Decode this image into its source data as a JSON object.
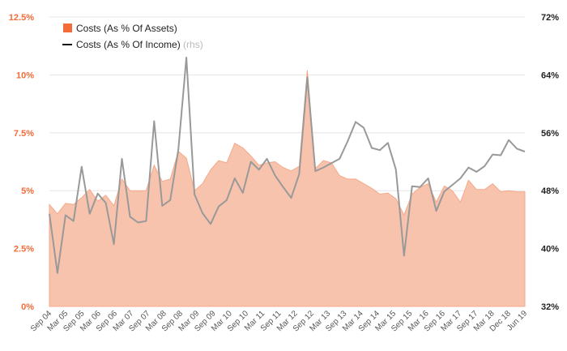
{
  "chart_data": {
    "type": "area+line",
    "title": "",
    "colors": {
      "area": "#f8c3ad",
      "area_swatch": "#f26b38",
      "line": "#999999",
      "legend_line": "#111111",
      "left_axis": "#f26b38",
      "right_axis": "#222222"
    },
    "legend": [
      {
        "name": "Costs (As % Of Assets)",
        "suffix": ""
      },
      {
        "name": "Costs (As % Of Income)",
        "suffix": "(rhs)"
      }
    ],
    "y_left": {
      "min": 0,
      "max": 12.5,
      "ticks": [
        "0%",
        "2.5%",
        "5%",
        "7.5%",
        "10%",
        "12.5%"
      ],
      "tick_values": [
        0,
        2.5,
        5,
        7.5,
        10,
        12.5
      ]
    },
    "y_right": {
      "min": 32,
      "max": 72,
      "ticks": [
        "32%",
        "40%",
        "48%",
        "56%",
        "64%",
        "72%"
      ],
      "tick_values": [
        32,
        40,
        48,
        56,
        64,
        72
      ]
    },
    "x_labels": [
      "Sep 04",
      "Mar 05",
      "Sep 05",
      "Mar 06",
      "Sep 06",
      "Mar 07",
      "Sep 07",
      "Mar 08",
      "Sep 08",
      "Mar 09",
      "Sep 09",
      "Mar 10",
      "Sep 10",
      "Mar 11",
      "Sep 11",
      "Mar 12",
      "Sep 12",
      "Mar 13",
      "Sep 13",
      "Mar 14",
      "Sep 14",
      "Mar 15",
      "Sep 15",
      "Mar 16",
      "Sep 16",
      "Mar 17",
      "Sep 17",
      "Mar 18",
      "Dec 18",
      "Jun 19"
    ],
    "x_count": 60,
    "series": [
      {
        "name": "Costs (As % Of Assets)",
        "axis": "left",
        "kind": "area",
        "values": [
          4.4,
          4.0,
          4.45,
          4.4,
          4.7,
          5.05,
          4.55,
          4.8,
          4.35,
          5.5,
          5.0,
          5.0,
          5.0,
          6.1,
          5.4,
          5.5,
          6.7,
          6.4,
          5.0,
          5.3,
          5.9,
          6.3,
          6.2,
          7.05,
          6.85,
          6.5,
          6.1,
          6.2,
          6.25,
          6.0,
          5.85,
          6.05,
          10.2,
          5.95,
          6.3,
          6.2,
          5.65,
          5.5,
          5.5,
          5.3,
          5.1,
          4.85,
          4.9,
          4.65,
          3.95,
          4.85,
          5.15,
          5.3,
          4.5,
          5.2,
          5.0,
          4.5,
          5.45,
          5.05,
          5.05,
          5.3,
          4.95,
          5.0,
          4.95,
          4.95
        ]
      },
      {
        "name": "Costs (As % Of Income)",
        "axis": "right",
        "kind": "line",
        "values": [
          44.8,
          36.6,
          44.6,
          43.8,
          51.3,
          44.8,
          47.6,
          46.3,
          40.6,
          52.4,
          44.4,
          43.6,
          43.8,
          57.6,
          45.9,
          46.7,
          53.7,
          66.4,
          47.5,
          44.9,
          43.4,
          45.8,
          46.7,
          49.7,
          47.7,
          52.0,
          50.9,
          52.4,
          50.1,
          48.5,
          47.0,
          50.3,
          63.7,
          50.7,
          51.2,
          51.8,
          52.4,
          54.8,
          57.5,
          56.7,
          53.9,
          53.6,
          54.6,
          50.9,
          39.0,
          48.6,
          48.5,
          49.7,
          45.2,
          47.9,
          48.8,
          49.7,
          51.2,
          50.6,
          51.4,
          53.0,
          52.9,
          55.0,
          53.8,
          53.4
        ]
      }
    ]
  }
}
